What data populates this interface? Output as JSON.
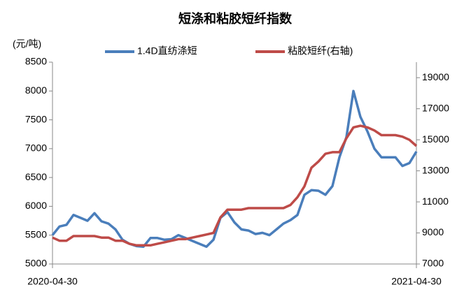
{
  "chart_data": {
    "type": "line",
    "title": "短涤和粘胶短纤指数",
    "y_label": "(元/吨)",
    "categories": [
      "2020-04-30",
      null,
      null,
      null,
      null,
      null,
      null,
      null,
      null,
      null,
      null,
      null,
      null,
      null,
      null,
      null,
      null,
      null,
      null,
      null,
      null,
      null,
      null,
      null,
      null,
      null,
      null,
      null,
      null,
      null,
      null,
      null,
      null,
      null,
      null,
      null,
      null,
      null,
      null,
      null,
      null,
      null,
      null,
      null,
      null,
      null,
      null,
      null,
      null,
      null,
      null,
      null,
      "2021-04-30"
    ],
    "series": [
      {
        "name": "1.4D直纺涤短",
        "color": "#4a7ebb",
        "values": [
          5500,
          5650,
          5680,
          5850,
          5800,
          5750,
          5880,
          5740,
          5700,
          5600,
          5420,
          5350,
          5310,
          5300,
          5450,
          5450,
          5420,
          5430,
          5500,
          5450,
          5400,
          5350,
          5300,
          5420,
          5800,
          5900,
          5720,
          5600,
          5580,
          5520,
          5540,
          5500,
          5600,
          5700,
          5760,
          5850,
          6200,
          6280,
          6270,
          6200,
          6350,
          6850,
          7200,
          8000,
          7550,
          7300,
          7000,
          6850,
          6850,
          6850,
          6700,
          6750,
          6950
        ]
      },
      {
        "name": "粘胶短纤(右轴)",
        "color": "#be4b48",
        "axis": "y2",
        "values": [
          8700,
          8500,
          8500,
          8800,
          8800,
          8800,
          8800,
          8700,
          8700,
          8500,
          8500,
          8300,
          8200,
          8200,
          8200,
          8300,
          8400,
          8500,
          8600,
          8600,
          8700,
          8800,
          8900,
          9000,
          10000,
          10500,
          10500,
          10500,
          10600,
          10600,
          10600,
          10600,
          10600,
          10600,
          10800,
          11300,
          12000,
          13200,
          13600,
          14100,
          14200,
          14200,
          15100,
          15800,
          15900,
          15800,
          15600,
          15300,
          15300,
          15300,
          15200,
          15000,
          14600
        ]
      }
    ],
    "ylim": [
      5000,
      8500
    ],
    "yticks": [
      5000,
      5500,
      6000,
      6500,
      7000,
      7500,
      8000,
      8500
    ],
    "y2lim": [
      7000,
      20000
    ],
    "y2ticks": [
      7000,
      9000,
      11000,
      13000,
      15000,
      17000,
      19000
    ],
    "grid": false,
    "legend": "top"
  }
}
